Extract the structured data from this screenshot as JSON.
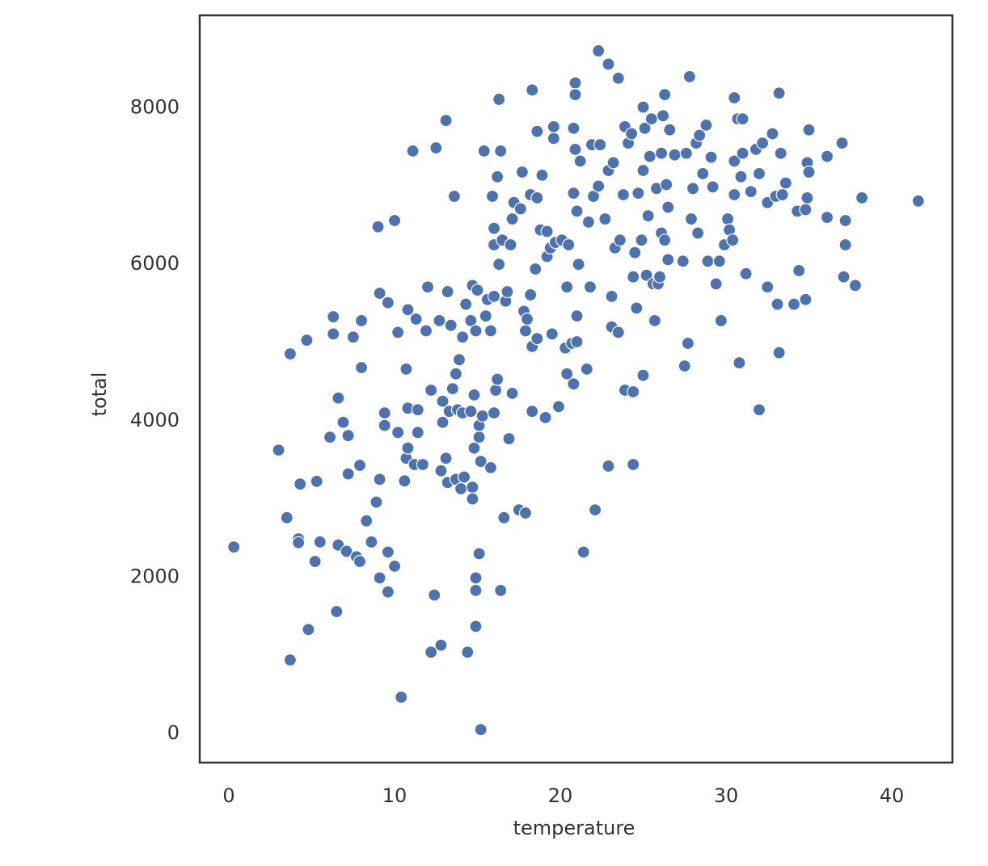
{
  "chart_data": {
    "type": "scatter",
    "x_label": "temperature",
    "y_label": "total",
    "color": "#4c72b0",
    "xlim": [
      -1.76,
      43.66
    ],
    "ylim": [
      -372,
      9184
    ],
    "xticks": [
      0,
      10,
      20,
      30,
      40
    ],
    "yticks": [
      0,
      2000,
      4000,
      6000,
      8000
    ],
    "x": [
      0.3,
      3.0,
      3.5,
      3.7,
      3.7,
      4.2,
      4.2,
      4.3,
      4.7,
      4.8,
      5.2,
      5.3,
      5.5,
      6.1,
      6.3,
      6.3,
      6.5,
      6.6,
      6.6,
      6.9,
      7.1,
      7.2,
      7.2,
      7.5,
      7.7,
      7.9,
      7.9,
      8.0,
      8.0,
      8.3,
      8.6,
      8.9,
      9.0,
      9.1,
      9.1,
      9.1,
      9.4,
      9.4,
      9.6,
      9.6,
      9.6,
      10.0,
      10.0,
      10.2,
      10.2,
      10.4,
      10.6,
      10.7,
      10.7,
      10.8,
      10.8,
      10.8,
      11.1,
      11.2,
      11.3,
      11.4,
      11.4,
      11.7,
      11.9,
      12.0,
      12.2,
      12.2,
      12.4,
      12.5,
      12.7,
      12.8,
      12.8,
      12.9,
      12.9,
      13.1,
      13.1,
      13.2,
      13.2,
      13.3,
      13.4,
      13.5,
      13.6,
      13.7,
      13.7,
      13.8,
      13.9,
      14.0,
      14.1,
      14.1,
      14.2,
      14.3,
      14.4,
      14.6,
      14.6,
      14.7,
      14.7,
      14.7,
      14.8,
      14.8,
      14.9,
      14.9,
      14.9,
      14.9,
      15.0,
      15.1,
      15.1,
      15.1,
      15.2,
      15.2,
      15.3,
      15.4,
      15.5,
      15.6,
      15.8,
      15.8,
      15.9,
      16.0,
      16.0,
      16.0,
      16.0,
      16.1,
      16.2,
      16.2,
      16.3,
      16.3,
      16.4,
      16.4,
      16.5,
      16.6,
      16.7,
      16.8,
      16.9,
      17.0,
      17.1,
      17.1,
      17.2,
      17.5,
      17.6,
      17.7,
      17.8,
      17.9,
      17.9,
      18.0,
      18.2,
      18.2,
      18.3,
      18.3,
      18.3,
      18.5,
      18.6,
      18.6,
      18.6,
      18.8,
      18.9,
      19.1,
      19.2,
      19.2,
      19.4,
      19.5,
      19.6,
      19.6,
      19.7,
      19.9,
      20.1,
      20.3,
      20.4,
      20.4,
      20.5,
      20.7,
      20.8,
      20.8,
      20.8,
      20.9,
      20.9,
      20.9,
      21.0,
      21.0,
      21.0,
      21.1,
      21.2,
      21.4,
      21.6,
      21.7,
      21.8,
      21.9,
      22.0,
      22.1,
      22.3,
      22.3,
      22.4,
      22.7,
      22.9,
      22.9,
      22.9,
      23.1,
      23.1,
      23.2,
      23.3,
      23.5,
      23.5,
      23.6,
      23.8,
      23.9,
      23.9,
      24.1,
      24.3,
      24.4,
      24.4,
      24.4,
      24.5,
      24.6,
      24.7,
      24.9,
      25.0,
      25.0,
      25.0,
      25.1,
      25.2,
      25.3,
      25.4,
      25.5,
      25.6,
      25.7,
      25.8,
      25.9,
      26.0,
      26.1,
      26.1,
      26.2,
      26.3,
      26.3,
      26.4,
      26.5,
      26.5,
      26.6,
      26.9,
      27.4,
      27.5,
      27.6,
      27.7,
      27.8,
      27.9,
      28.0,
      28.2,
      28.3,
      28.4,
      28.6,
      28.8,
      28.9,
      29.1,
      29.2,
      29.4,
      29.6,
      29.7,
      29.9,
      30.1,
      30.2,
      30.4,
      30.5,
      30.5,
      30.5,
      30.7,
      30.8,
      30.9,
      31.0,
      31.0,
      31.2,
      31.5,
      31.8,
      32.0,
      32.0,
      32.2,
      32.5,
      32.5,
      32.8,
      33.0,
      33.1,
      33.2,
      33.2,
      33.3,
      33.4,
      33.6,
      34.1,
      34.3,
      34.4,
      34.8,
      34.8,
      34.9,
      34.9,
      35.0,
      35.0,
      36.1,
      36.1,
      37.0,
      37.1,
      37.2,
      37.2,
      37.8,
      38.2,
      41.6
    ],
    "values": [
      2385,
      3625,
      2760,
      4855,
      940,
      2490,
      2440,
      3190,
      5030,
      1330,
      2200,
      3225,
      2450,
      3790,
      5330,
      5110,
      1560,
      2410,
      4290,
      3980,
      2330,
      3810,
      3320,
      5070,
      2260,
      3430,
      2200,
      5280,
      4680,
      2720,
      2450,
      2960,
      6480,
      3250,
      1990,
      5630,
      4100,
      3940,
      5510,
      2320,
      1810,
      6560,
      2140,
      3850,
      5130,
      465,
      3230,
      4660,
      3520,
      4160,
      3650,
      5420,
      7450,
      3440,
      5300,
      4140,
      3850,
      3440,
      5150,
      5710,
      1040,
      4390,
      1770,
      7490,
      5280,
      1130,
      3360,
      4250,
      3980,
      3520,
      7840,
      3210,
      5650,
      4120,
      5220,
      4410,
      6870,
      3250,
      4600,
      4140,
      4780,
      3130,
      4100,
      5070,
      3280,
      5490,
      1040,
      4120,
      5280,
      5730,
      3150,
      3000,
      3650,
      4330,
      5150,
      1370,
      1990,
      1830,
      5670,
      3790,
      2300,
      3940,
      50,
      3480,
      4060,
      7450,
      5340,
      5550,
      5150,
      3400,
      6870,
      6460,
      6250,
      4100,
      5590,
      4390,
      4530,
      7120,
      8110,
      6000,
      1830,
      7450,
      6310,
      2760,
      5530,
      5650,
      3770,
      6250,
      4350,
      6580,
      6790,
      2860,
      6710,
      7180,
      5400,
      5150,
      2820,
      5300,
      5610,
      6890,
      8230,
      4950,
      4120,
      5940,
      5050,
      6850,
      7700,
      6440,
      7140,
      4040,
      6100,
      6420,
      6210,
      5110,
      7610,
      7760,
      6280,
      4180,
      6310,
      4930,
      5710,
      4600,
      6250,
      4990,
      4470,
      7740,
      6910,
      8320,
      8170,
      7470,
      5340,
      5010,
      6680,
      6000,
      7320,
      2320,
      4660,
      6540,
      5710,
      7530,
      6870,
      2860,
      8730,
      7000,
      7530,
      6580,
      3420,
      7200,
      8560,
      5590,
      5200,
      7300,
      6210,
      8380,
      5130,
      6310,
      6890,
      4390,
      7760,
      7550,
      7670,
      5840,
      4370,
      3440,
      6150,
      5440,
      6910,
      6310,
      4580,
      8010,
      7200,
      7740,
      5860,
      6620,
      7380,
      7860,
      5750,
      5280,
      6970,
      5750,
      5840,
      6400,
      7420,
      7900,
      8170,
      6310,
      7020,
      6060,
      6730,
      7720,
      7400,
      6040,
      4700,
      7420,
      4990,
      8400,
      6580,
      6970,
      7550,
      6400,
      7650,
      7160,
      7780,
      6040,
      7370,
      6990,
      5750,
      6040,
      5280,
      6250,
      6580,
      6440,
      6310,
      8130,
      7320,
      6890,
      7860,
      4740,
      7120,
      7420,
      7860,
      5880,
      6930,
      7470,
      4140,
      7160,
      7550,
      5710,
      6790,
      7670,
      6870,
      5490,
      8190,
      4870,
      7420,
      6890,
      7040,
      5490,
      6680,
      5920,
      5550,
      6700,
      6850,
      7300,
      7180,
      7720,
      7380,
      6600,
      7550,
      5840,
      6560,
      6250,
      5730,
      6850,
      6810
    ]
  }
}
